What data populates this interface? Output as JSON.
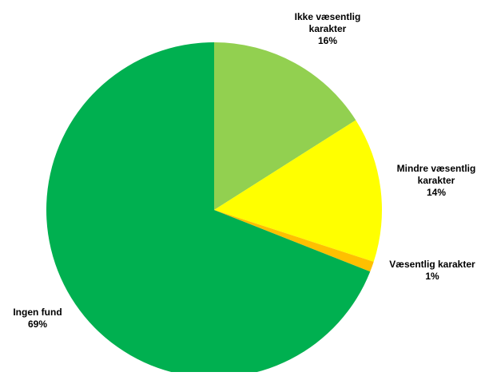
{
  "chart_data": {
    "type": "pie",
    "title": "",
    "start_angle_deg": 0,
    "direction": "clockwise",
    "legend": "none",
    "slices": [
      {
        "label_lines": [
          "Ikke væsentlig",
          "karakter"
        ],
        "value": 16,
        "value_label": "16%",
        "color": "#92D050"
      },
      {
        "label_lines": [
          "Mindre væsentlig",
          "karakter"
        ],
        "value": 14,
        "value_label": "14%",
        "color": "#FFFF00"
      },
      {
        "label_lines": [
          "Væsentlig karakter"
        ],
        "value": 1,
        "value_label": "1%",
        "color": "#FFC000"
      },
      {
        "label_lines": [
          "Ingen fund"
        ],
        "value": 69,
        "value_label": "69%",
        "color": "#00B050"
      }
    ]
  }
}
